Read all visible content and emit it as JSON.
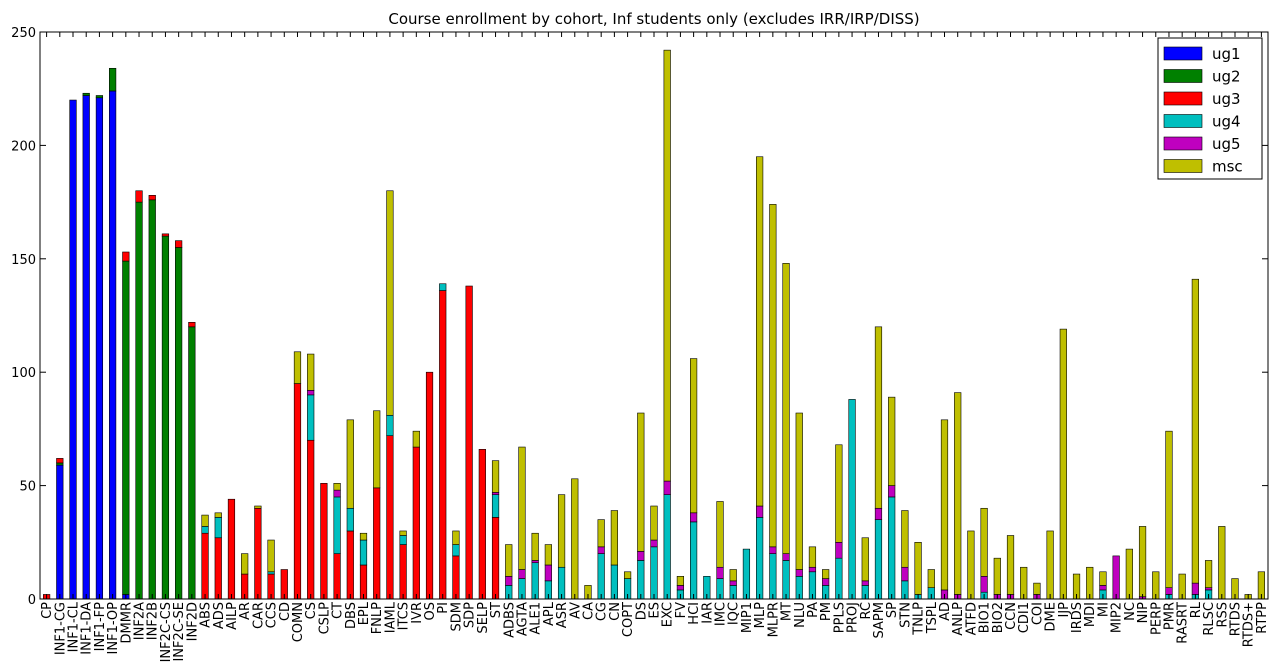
{
  "chart_data": {
    "type": "bar",
    "stacked": true,
    "title": "Course enrollment by cohort, Inf students only (excludes IRR/IRP/DISS)",
    "xlabel": "",
    "ylabel": "",
    "ylim": [
      0,
      250
    ],
    "yticks": [
      0,
      50,
      100,
      150,
      200,
      250
    ],
    "legend_position": "top-right",
    "categories": [
      "CP",
      "INF1-CG",
      "INF1-CL",
      "INF1-DA",
      "INF1-FP",
      "INF1-OP",
      "DMMR",
      "INF2A",
      "INF2B",
      "INF2C-CS",
      "INF2C-SE",
      "INF2D",
      "ABS",
      "ADS",
      "AILP",
      "AR",
      "CAR",
      "CCS",
      "CD",
      "COMN",
      "CS",
      "CSLP",
      "CT",
      "DBS",
      "EPL",
      "FNLP",
      "IAML",
      "ITCS",
      "IVR",
      "OS",
      "PI",
      "SDM",
      "SDP",
      "SELP",
      "ST",
      "ADBS",
      "AGTA",
      "ALE1",
      "APL",
      "ASR",
      "AV",
      "CA",
      "CG",
      "CN",
      "COPT",
      "DS",
      "ES",
      "EXC",
      "FV",
      "HCI",
      "IAR",
      "IMC",
      "IQC",
      "MIP1",
      "MLP",
      "MLPR",
      "MT",
      "NLU",
      "PA",
      "PM",
      "PPLS",
      "PROJ",
      "RC",
      "SAPM",
      "SP",
      "STN",
      "TNLP",
      "TSPL",
      "AD",
      "ANLP",
      "ATFD",
      "BIO1",
      "BIO2",
      "CCN",
      "CDI1",
      "COI",
      "DME",
      "IJP",
      "IRDS",
      "MDI",
      "MI",
      "MIP2",
      "NC",
      "NIP",
      "PERP",
      "PMR",
      "RASRT",
      "RL",
      "RLSC",
      "RSS",
      "RTDS",
      "RTDS+",
      "RTPP"
    ],
    "series": [
      {
        "name": "ug1",
        "color": "#0000ff",
        "values": [
          0,
          59,
          220,
          222,
          221,
          224,
          2,
          0,
          0,
          0,
          0,
          0,
          0,
          0,
          0,
          0,
          0,
          0,
          0,
          0,
          0,
          0,
          0,
          0,
          0,
          0,
          0,
          0,
          0,
          0,
          0,
          0,
          0,
          0,
          0,
          0,
          0,
          0,
          0,
          0,
          0,
          0,
          0,
          0,
          0,
          0,
          0,
          0,
          0,
          0,
          0,
          0,
          0,
          0,
          0,
          0,
          0,
          0,
          0,
          0,
          0,
          0,
          0,
          0,
          0,
          0,
          0,
          0,
          0,
          0,
          0,
          0,
          0,
          0,
          0,
          0,
          0,
          0,
          0,
          0,
          0,
          0,
          0,
          0,
          0,
          0,
          0,
          0,
          0,
          0,
          0,
          0,
          0
        ]
      },
      {
        "name": "ug2",
        "color": "#008000",
        "values": [
          0,
          1,
          0,
          1,
          1,
          10,
          147,
          175,
          176,
          160,
          155,
          120,
          0,
          0,
          0,
          0,
          0,
          0,
          0,
          0,
          0,
          0,
          0,
          0,
          0,
          0,
          0,
          0,
          0,
          0,
          0,
          0,
          0,
          0,
          0,
          0,
          0,
          0,
          0,
          0,
          0,
          0,
          0,
          0,
          0,
          0,
          0,
          0,
          0,
          0,
          0,
          0,
          0,
          0,
          0,
          0,
          0,
          0,
          0,
          0,
          0,
          0,
          0,
          0,
          0,
          0,
          0,
          0,
          0,
          0,
          0,
          0,
          0,
          0,
          0,
          0,
          0,
          0,
          0,
          0,
          0,
          0,
          0,
          0,
          0,
          0,
          0,
          0,
          0,
          0,
          0,
          0,
          0
        ]
      },
      {
        "name": "ug3",
        "color": "#ff0000",
        "values": [
          2,
          2,
          0,
          0,
          0,
          0,
          4,
          5,
          2,
          1,
          3,
          2,
          29,
          27,
          44,
          11,
          40,
          11,
          13,
          95,
          70,
          51,
          20,
          30,
          15,
          49,
          72,
          24,
          67,
          100,
          136,
          19,
          138,
          66,
          36,
          0,
          0,
          0,
          0,
          0,
          0,
          0,
          0,
          0,
          0,
          0,
          0,
          0,
          0,
          0,
          0,
          0,
          0,
          0,
          0,
          0,
          0,
          0,
          0,
          0,
          0,
          0,
          0,
          0,
          0,
          0,
          0,
          0,
          0,
          0,
          0,
          0,
          0,
          0,
          0,
          0,
          0,
          0,
          0,
          0,
          0,
          0,
          0,
          0,
          0,
          0,
          0,
          0,
          0,
          0,
          0,
          0,
          0
        ]
      },
      {
        "name": "ug4",
        "color": "#00bfbf",
        "values": [
          0,
          0,
          0,
          0,
          0,
          0,
          0,
          0,
          0,
          0,
          0,
          0,
          3,
          9,
          0,
          0,
          0,
          1,
          0,
          0,
          20,
          0,
          25,
          10,
          11,
          0,
          9,
          4,
          0,
          0,
          3,
          5,
          0,
          0,
          10,
          6,
          9,
          16,
          8,
          14,
          0,
          0,
          20,
          15,
          9,
          17,
          23,
          46,
          4,
          34,
          10,
          9,
          6,
          22,
          36,
          20,
          17,
          10,
          12,
          6,
          18,
          88,
          6,
          35,
          45,
          8,
          2,
          5,
          0,
          0,
          0,
          3,
          0,
          0,
          0,
          0,
          0,
          0,
          0,
          0,
          4,
          0,
          0,
          0,
          0,
          2,
          0,
          2,
          4,
          0,
          0,
          0,
          0
        ]
      },
      {
        "name": "ug5",
        "color": "#bf00bf",
        "values": [
          0,
          0,
          0,
          0,
          0,
          0,
          0,
          0,
          0,
          0,
          0,
          0,
          0,
          0,
          0,
          0,
          0,
          0,
          0,
          0,
          2,
          0,
          3,
          0,
          0,
          0,
          0,
          0,
          0,
          0,
          0,
          0,
          0,
          0,
          1,
          4,
          4,
          1,
          7,
          0,
          0,
          0,
          3,
          0,
          0,
          4,
          3,
          6,
          2,
          4,
          0,
          5,
          2,
          0,
          5,
          3,
          3,
          3,
          2,
          3,
          7,
          0,
          2,
          5,
          5,
          6,
          0,
          0,
          4,
          2,
          0,
          7,
          2,
          2,
          0,
          2,
          0,
          0,
          0,
          0,
          2,
          19,
          0,
          1,
          0,
          3,
          0,
          5,
          1,
          0,
          0,
          0,
          0
        ]
      },
      {
        "name": "msc",
        "color": "#bfbf00",
        "values": [
          0,
          0,
          0,
          0,
          0,
          0,
          0,
          0,
          0,
          0,
          0,
          0,
          5,
          2,
          0,
          9,
          1,
          14,
          0,
          14,
          16,
          0,
          3,
          39,
          3,
          34,
          99,
          2,
          7,
          0,
          0,
          6,
          0,
          0,
          14,
          14,
          54,
          12,
          9,
          32,
          53,
          6,
          12,
          24,
          3,
          61,
          15,
          190,
          4,
          68,
          0,
          29,
          5,
          0,
          154,
          151,
          128,
          69,
          9,
          4,
          43,
          0,
          19,
          80,
          39,
          25,
          23,
          8,
          75,
          89,
          30,
          30,
          16,
          26,
          14,
          5,
          30,
          119,
          11,
          14,
          6,
          0,
          22,
          31,
          12,
          69,
          11,
          134,
          12,
          32,
          9,
          2,
          12
        ]
      }
    ]
  }
}
